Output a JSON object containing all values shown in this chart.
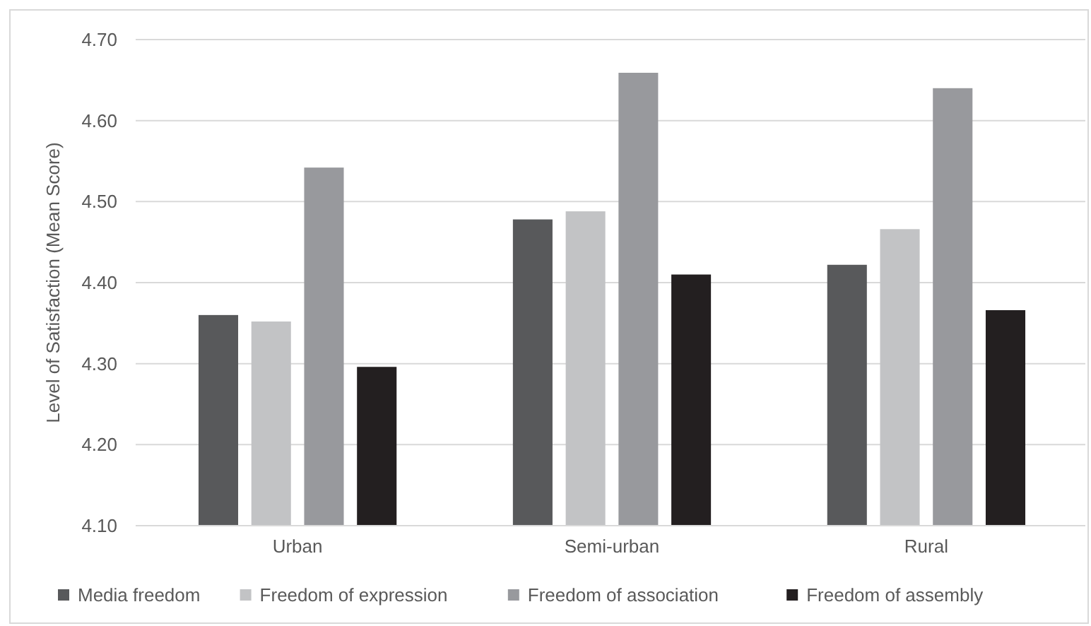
{
  "chart_data": {
    "type": "bar",
    "ylabel": "Level of Satisfaction (Mean Score)",
    "categories": [
      "Urban",
      "Semi-urban",
      "Rural"
    ],
    "series": [
      {
        "name": "Media freedom",
        "color": "#58595b",
        "values": [
          4.36,
          4.478,
          4.422
        ]
      },
      {
        "name": "Freedom of expression",
        "color": "#c2c3c5",
        "values": [
          4.352,
          4.488,
          4.466
        ]
      },
      {
        "name": "Freedom of association",
        "color": "#98999d",
        "values": [
          4.542,
          4.659,
          4.64
        ]
      },
      {
        "name": "Freedom of assembly",
        "color": "#231f20",
        "values": [
          4.296,
          4.41,
          4.366
        ]
      }
    ],
    "ylim": [
      4.1,
      4.7
    ],
    "yticks": [
      {
        "value": 4.1,
        "label": "4.10"
      },
      {
        "value": 4.2,
        "label": "4.20"
      },
      {
        "value": 4.3,
        "label": "4.30"
      },
      {
        "value": 4.4,
        "label": "4.40"
      },
      {
        "value": 4.5,
        "label": "4.50"
      },
      {
        "value": 4.6,
        "label": "4.60"
      },
      {
        "value": 4.7,
        "label": "4.70"
      }
    ],
    "grid": "y",
    "legend": "bottom"
  }
}
